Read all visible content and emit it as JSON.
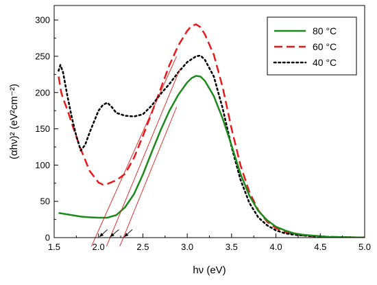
{
  "chart_data": {
    "type": "line",
    "xlabel": "hν (eV)",
    "ylabel": "(αhν)² (eV²cm⁻²)",
    "xlim": [
      1.5,
      5.0
    ],
    "ylim": [
      0,
      320
    ],
    "x_ticks": [
      1.5,
      2.0,
      2.5,
      3.0,
      3.5,
      4.0,
      4.5,
      5.0
    ],
    "y_ticks": [
      0,
      50,
      100,
      150,
      200,
      250,
      300
    ],
    "x_tick_labels": [
      "1.5",
      "2.0",
      "2.5",
      "3.0",
      "3.5",
      "4.0",
      "4.5",
      "5.0"
    ],
    "y_tick_labels": [
      "0",
      "50",
      "100",
      "150",
      "200",
      "250",
      "300"
    ],
    "grid": false,
    "legend_position": "top-right",
    "series": [
      {
        "name": "80 °C",
        "color": "#1a8a1a",
        "style": "solid",
        "points": [
          [
            1.55,
            34
          ],
          [
            1.6,
            33
          ],
          [
            1.7,
            31
          ],
          [
            1.8,
            29
          ],
          [
            1.9,
            28
          ],
          [
            2.0,
            27.5
          ],
          [
            2.1,
            27.5
          ],
          [
            2.2,
            31
          ],
          [
            2.3,
            42
          ],
          [
            2.4,
            60
          ],
          [
            2.5,
            87
          ],
          [
            2.6,
            118
          ],
          [
            2.7,
            148
          ],
          [
            2.8,
            175
          ],
          [
            2.9,
            197
          ],
          [
            3.0,
            214
          ],
          [
            3.05,
            220
          ],
          [
            3.1,
            223
          ],
          [
            3.15,
            222
          ],
          [
            3.2,
            216
          ],
          [
            3.3,
            195
          ],
          [
            3.4,
            164
          ],
          [
            3.5,
            127
          ],
          [
            3.6,
            88
          ],
          [
            3.7,
            58
          ],
          [
            3.8,
            37
          ],
          [
            3.9,
            24
          ],
          [
            4.0,
            15
          ],
          [
            4.1,
            10
          ],
          [
            4.2,
            6
          ],
          [
            4.3,
            4
          ],
          [
            4.4,
            3
          ],
          [
            4.6,
            1
          ],
          [
            4.8,
            0.5
          ],
          [
            5.0,
            0
          ]
        ]
      },
      {
        "name": "60 °C",
        "color": "#e8191a",
        "style": "dashed",
        "points": [
          [
            1.55,
            222
          ],
          [
            1.58,
            200
          ],
          [
            1.6,
            192
          ],
          [
            1.65,
            176
          ],
          [
            1.7,
            157
          ],
          [
            1.8,
            122
          ],
          [
            1.9,
            92
          ],
          [
            2.0,
            76
          ],
          [
            2.05,
            73
          ],
          [
            2.1,
            74
          ],
          [
            2.2,
            79
          ],
          [
            2.3,
            88
          ],
          [
            2.4,
            110
          ],
          [
            2.5,
            140
          ],
          [
            2.6,
            172
          ],
          [
            2.7,
            205
          ],
          [
            2.8,
            238
          ],
          [
            2.9,
            265
          ],
          [
            3.0,
            285
          ],
          [
            3.05,
            292
          ],
          [
            3.1,
            294
          ],
          [
            3.15,
            290
          ],
          [
            3.2,
            280
          ],
          [
            3.3,
            252
          ],
          [
            3.4,
            207
          ],
          [
            3.5,
            150
          ],
          [
            3.6,
            100
          ],
          [
            3.7,
            63
          ],
          [
            3.8,
            38
          ],
          [
            3.9,
            22
          ],
          [
            4.0,
            13
          ],
          [
            4.1,
            8
          ],
          [
            4.2,
            5
          ],
          [
            4.3,
            3
          ],
          [
            4.4,
            2
          ],
          [
            4.6,
            1
          ],
          [
            5.0,
            0
          ]
        ]
      },
      {
        "name": "40 °C",
        "color": "#000000",
        "style": "dotted",
        "points": [
          [
            1.55,
            230
          ],
          [
            1.57,
            238
          ],
          [
            1.6,
            228
          ],
          [
            1.65,
            195
          ],
          [
            1.7,
            165
          ],
          [
            1.75,
            140
          ],
          [
            1.8,
            120
          ],
          [
            1.85,
            128
          ],
          [
            1.9,
            145
          ],
          [
            1.95,
            160
          ],
          [
            2.0,
            175
          ],
          [
            2.05,
            183
          ],
          [
            2.1,
            186
          ],
          [
            2.15,
            180
          ],
          [
            2.2,
            172
          ],
          [
            2.3,
            168
          ],
          [
            2.4,
            167
          ],
          [
            2.5,
            170
          ],
          [
            2.6,
            182
          ],
          [
            2.7,
            198
          ],
          [
            2.8,
            212
          ],
          [
            2.9,
            228
          ],
          [
            3.0,
            242
          ],
          [
            3.1,
            250
          ],
          [
            3.15,
            251
          ],
          [
            3.2,
            245
          ],
          [
            3.3,
            222
          ],
          [
            3.4,
            178
          ],
          [
            3.5,
            125
          ],
          [
            3.6,
            80
          ],
          [
            3.7,
            48
          ],
          [
            3.8,
            28
          ],
          [
            3.9,
            17
          ],
          [
            4.0,
            10
          ],
          [
            4.1,
            6
          ],
          [
            4.2,
            4
          ],
          [
            4.4,
            2
          ],
          [
            4.6,
            1
          ],
          [
            5.0,
            0
          ]
        ]
      }
    ],
    "tangent_lines": [
      {
        "color": "#e8191a",
        "from": [
          1.92,
          -12
        ],
        "to": [
          2.88,
          250
        ]
      },
      {
        "color": "#e8191a",
        "from": [
          2.09,
          -12
        ],
        "to": [
          2.92,
          233
        ]
      },
      {
        "color": "#e8191a",
        "from": [
          2.24,
          -12
        ],
        "to": [
          2.88,
          180
        ]
      }
    ],
    "arrows": [
      {
        "from": [
          2.1,
          11
        ],
        "to": [
          2.01,
          1
        ]
      },
      {
        "from": [
          2.23,
          11
        ],
        "to": [
          2.13,
          1
        ]
      },
      {
        "from": [
          2.38,
          11
        ],
        "to": [
          2.29,
          1
        ]
      }
    ]
  }
}
